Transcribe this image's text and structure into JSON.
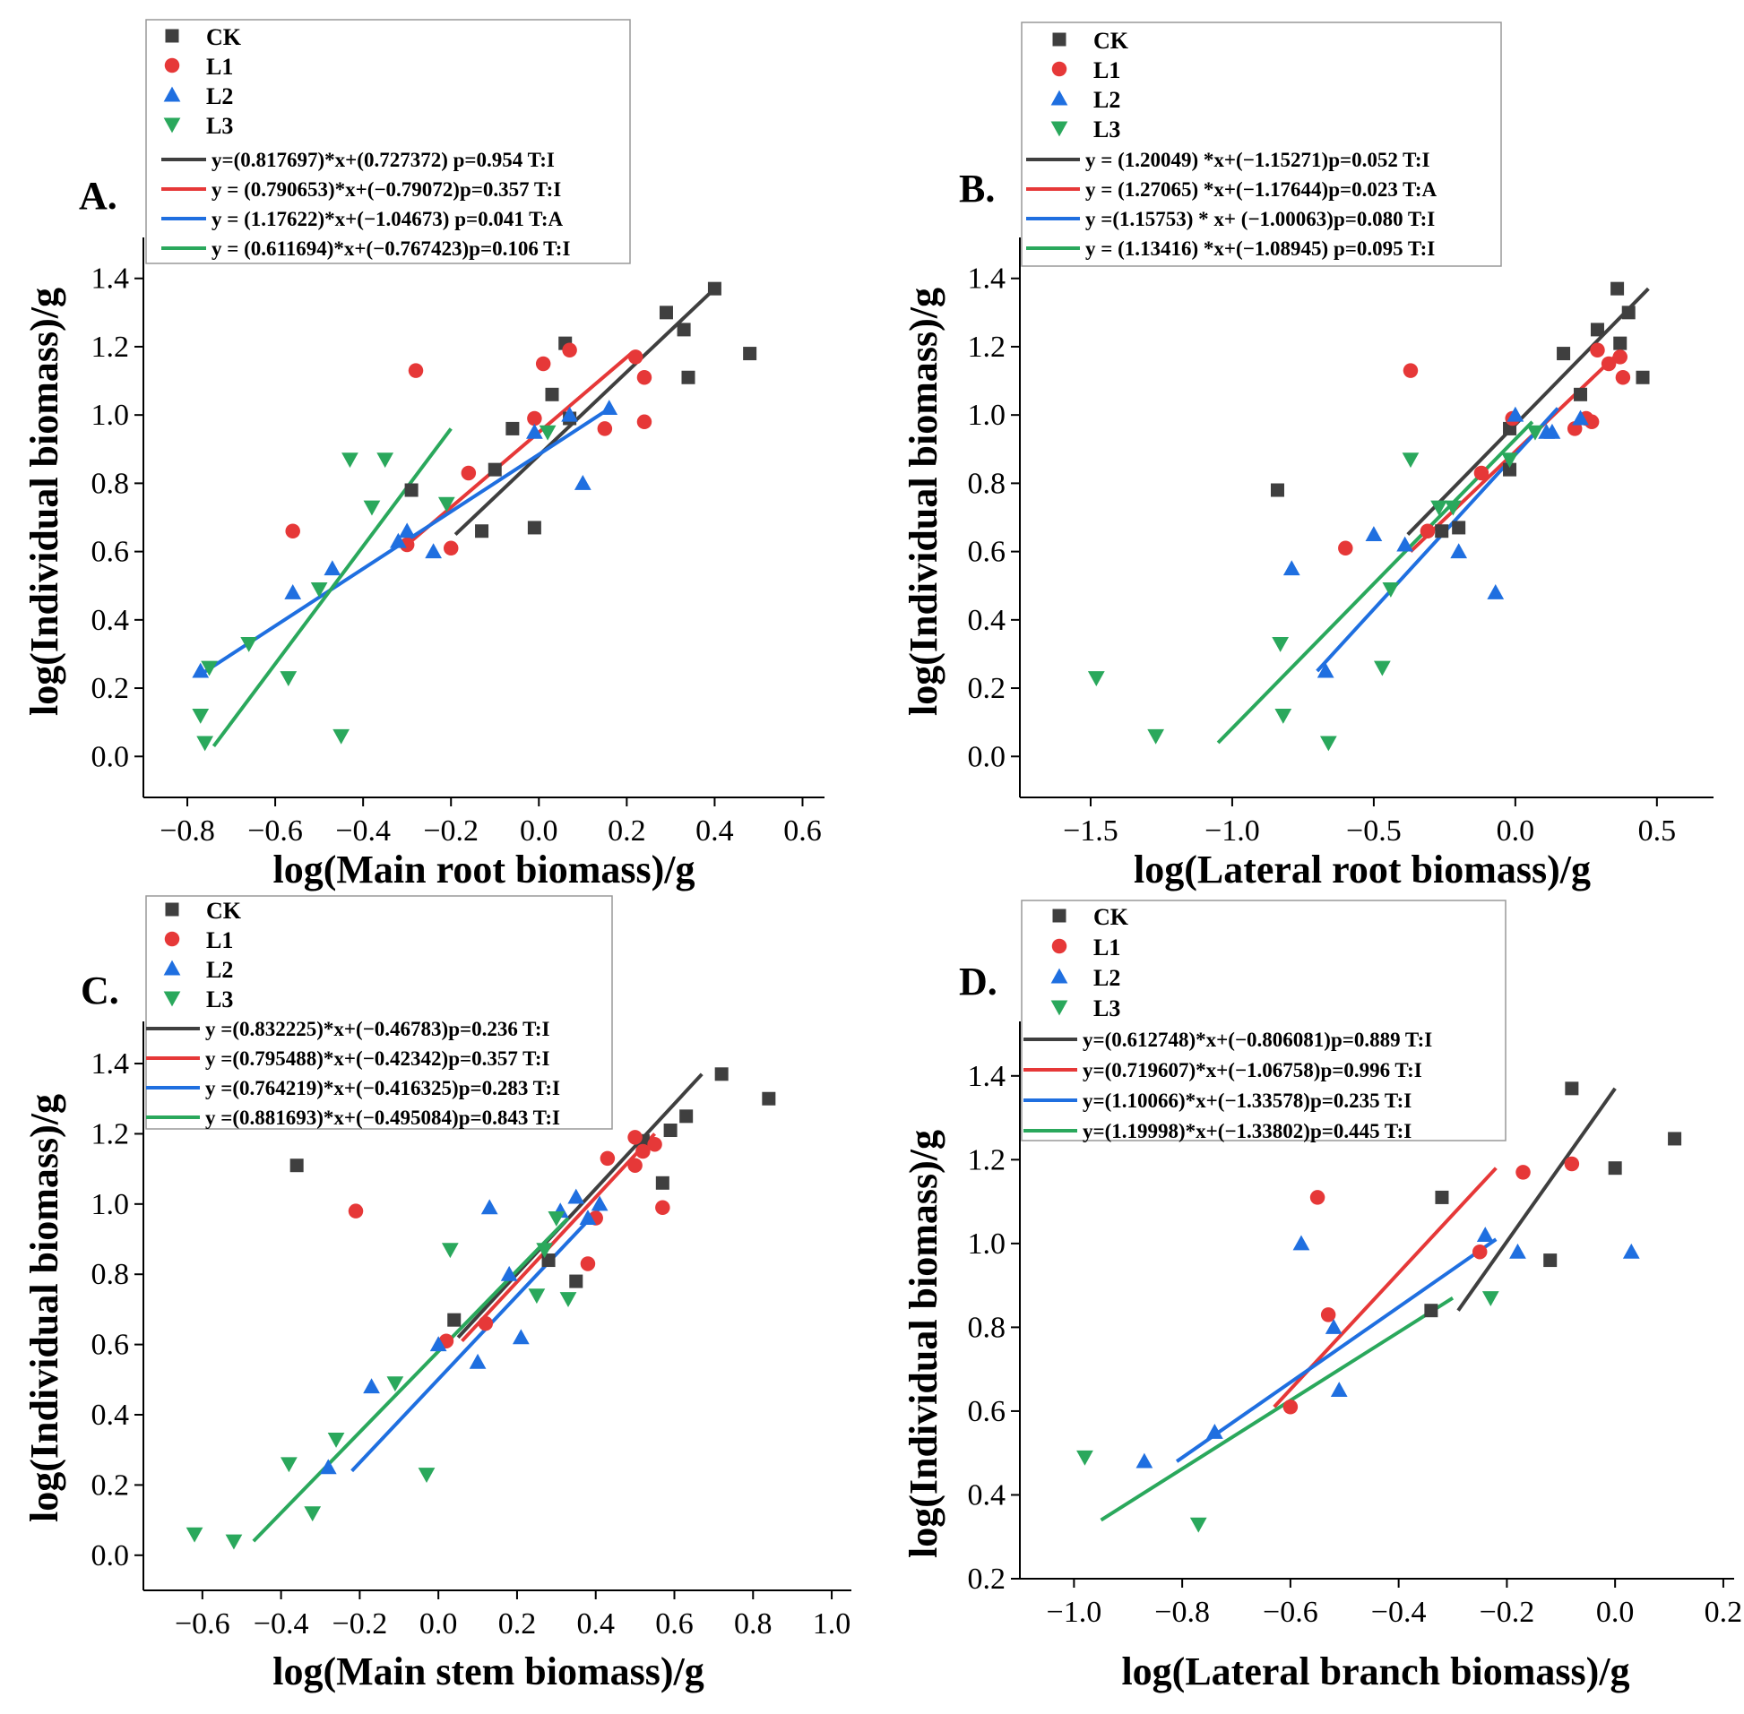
{
  "colors": {
    "CK": "#3f3f3f",
    "L1": "#e63838",
    "L2": "#1f6fe0",
    "L3": "#2aa85c",
    "axis": "#000000"
  },
  "markers": {
    "CK": "square",
    "L1": "circle",
    "L2": "triangle-up",
    "L3": "triangle-down"
  },
  "chart_data": [
    {
      "type": "scatter",
      "panel_label": "A.",
      "xlabel": "log(Main root biomass)/g",
      "ylabel": "log(Individual biomass)/g",
      "xlim": [
        -0.9,
        0.65
      ],
      "ylim": [
        -0.12,
        1.52
      ],
      "xticks": [
        -0.8,
        -0.6,
        -0.4,
        -0.2,
        0.0,
        0.2,
        0.4,
        0.6
      ],
      "xtick_labels": [
        "−0.8",
        "−0.6",
        "−0.4",
        "−0.2",
        "0.0",
        "0.2",
        "0.4",
        "0.6"
      ],
      "yticks": [
        0.0,
        0.2,
        0.4,
        0.6,
        0.8,
        1.0,
        1.2,
        1.4
      ],
      "ytick_labels": [
        "0.0",
        "0.2",
        "0.4",
        "0.6",
        "0.8",
        "1.0",
        "1.2",
        "1.4"
      ],
      "legend": [
        "CK",
        "L1",
        "L2",
        "L3"
      ],
      "series": [
        {
          "name": "CK",
          "x": [
            -0.29,
            -0.13,
            -0.1,
            -0.06,
            -0.01,
            0.03,
            0.06,
            0.07,
            0.29,
            0.33,
            0.34,
            0.4,
            0.48
          ],
          "y": [
            0.78,
            0.66,
            0.84,
            0.96,
            0.67,
            1.06,
            1.21,
            0.99,
            1.3,
            1.25,
            1.11,
            1.37,
            1.18
          ]
        },
        {
          "name": "L1",
          "x": [
            -0.56,
            -0.3,
            -0.28,
            -0.2,
            -0.16,
            -0.01,
            0.01,
            0.07,
            0.15,
            0.22,
            0.24,
            0.24
          ],
          "y": [
            0.66,
            0.62,
            1.13,
            0.61,
            0.83,
            0.99,
            1.15,
            1.19,
            0.96,
            1.17,
            1.11,
            0.98
          ]
        },
        {
          "name": "L2",
          "x": [
            -0.77,
            -0.56,
            -0.47,
            -0.32,
            -0.3,
            -0.24,
            -0.01,
            0.07,
            0.1,
            0.16
          ],
          "y": [
            0.25,
            0.48,
            0.55,
            0.63,
            0.66,
            0.6,
            0.95,
            1.0,
            0.8,
            1.02
          ]
        },
        {
          "name": "L3",
          "x": [
            -0.77,
            -0.76,
            -0.75,
            -0.66,
            -0.57,
            -0.5,
            -0.45,
            -0.43,
            -0.38,
            -0.35,
            -0.21,
            0.02
          ],
          "y": [
            0.12,
            0.04,
            0.26,
            0.33,
            0.23,
            0.49,
            0.06,
            0.87,
            0.73,
            0.87,
            0.74,
            0.95
          ]
        }
      ],
      "fits": [
        {
          "name": "CK",
          "label": "y=(0.817697)*x+(0.727372)  p=0.954 T:I",
          "x0": -0.19,
          "x1": 0.4,
          "y0": 0.65,
          "y1": 1.37
        },
        {
          "name": "L1",
          "label": "y = (0.790653)*x+(−0.79072)p=0.357 T:I",
          "x0": -0.3,
          "x1": 0.21,
          "y0": 0.62,
          "y1": 1.18
        },
        {
          "name": "L2",
          "label": "y = (1.17622)*x+(−1.04673) p=0.041 T:A",
          "x0": -0.77,
          "x1": 0.15,
          "y0": 0.24,
          "y1": 1.01
        },
        {
          "name": "L3",
          "label": "y = (0.611694)*x+(−0.767423)p=0.106 T:I",
          "x0": -0.74,
          "x1": -0.2,
          "y0": 0.03,
          "y1": 0.96
        }
      ]
    },
    {
      "type": "scatter",
      "panel_label": "B.",
      "xlabel": "log(Lateral root biomass)/g",
      "ylabel": "log(Individual biomass)/g",
      "xlim": [
        -1.75,
        0.7
      ],
      "ylim": [
        -0.12,
        1.52
      ],
      "xticks": [
        -1.5,
        -1.0,
        -0.5,
        0.0,
        0.5
      ],
      "xtick_labels": [
        "−1.5",
        "−1.0",
        "−0.5",
        "0.0",
        "0.5"
      ],
      "yticks": [
        0.0,
        0.2,
        0.4,
        0.6,
        0.8,
        1.0,
        1.2,
        1.4
      ],
      "ytick_labels": [
        "0.0",
        "0.2",
        "0.4",
        "0.6",
        "0.8",
        "1.0",
        "1.2",
        "1.4"
      ],
      "legend": [
        "CK",
        "L1",
        "L2",
        "L3"
      ],
      "series": [
        {
          "name": "CK",
          "x": [
            -0.84,
            -0.26,
            -0.2,
            -0.02,
            -0.02,
            0.17,
            0.23,
            0.29,
            0.36,
            0.37,
            0.4,
            0.45
          ],
          "y": [
            0.78,
            0.66,
            0.67,
            0.84,
            0.96,
            1.18,
            1.06,
            1.25,
            1.37,
            1.21,
            1.3,
            1.11
          ]
        },
        {
          "name": "L1",
          "x": [
            -0.6,
            -0.37,
            -0.31,
            -0.12,
            -0.01,
            0.21,
            0.25,
            0.27,
            0.29,
            0.33,
            0.37,
            0.38
          ],
          "y": [
            0.61,
            1.13,
            0.66,
            0.83,
            0.99,
            0.96,
            0.99,
            0.98,
            1.19,
            1.15,
            1.17,
            1.11
          ]
        },
        {
          "name": "L2",
          "x": [
            -0.79,
            -0.67,
            -0.5,
            -0.39,
            -0.2,
            -0.07,
            0.0,
            0.11,
            0.13,
            0.23
          ],
          "y": [
            0.55,
            0.25,
            0.65,
            0.62,
            0.6,
            0.48,
            1.0,
            0.95,
            0.95,
            0.99
          ]
        },
        {
          "name": "L3",
          "x": [
            -1.48,
            -1.27,
            -0.83,
            -0.82,
            -0.66,
            -0.47,
            -0.44,
            -0.37,
            -0.22,
            -0.27,
            -0.02,
            0.07
          ],
          "y": [
            0.23,
            0.06,
            0.33,
            0.12,
            0.04,
            0.26,
            0.49,
            0.87,
            0.73,
            0.73,
            0.87,
            0.95
          ]
        }
      ],
      "fits": [
        {
          "name": "CK",
          "label": "y = (1.20049) *x+(−1.15271)p=0.052 T:I",
          "x0": -0.38,
          "x1": 0.47,
          "y0": 0.65,
          "y1": 1.37
        },
        {
          "name": "L1",
          "label": "y = (1.27065) *x+(−1.17644)p=0.023 T:A",
          "x0": -0.37,
          "x1": 0.35,
          "y0": 0.6,
          "y1": 1.17
        },
        {
          "name": "L2",
          "label": "y =(1.15753) * x+ (−1.00063)p=0.080 T:I",
          "x0": -0.7,
          "x1": 0.15,
          "y0": 0.25,
          "y1": 1.02
        },
        {
          "name": "L3",
          "label": "y = (1.13416) *x+(−1.08945)  p=0.095 T:I",
          "x0": -1.05,
          "x1": 0.06,
          "y0": 0.04,
          "y1": 0.98
        }
      ]
    },
    {
      "type": "scatter",
      "panel_label": "C.",
      "xlabel": "log(Main stem biomass)/g",
      "ylabel": "log(Individual biomass)/g",
      "xlim": [
        -0.75,
        1.05
      ],
      "ylim": [
        -0.1,
        1.52
      ],
      "xticks": [
        -0.6,
        -0.4,
        -0.2,
        0.0,
        0.2,
        0.4,
        0.6,
        0.8,
        1.0
      ],
      "xtick_labels": [
        "−0.6",
        "−0.4",
        "−0.2",
        "0.0",
        "0.2",
        "0.4",
        "0.6",
        "0.8",
        "1.0"
      ],
      "yticks": [
        0.0,
        0.2,
        0.4,
        0.6,
        0.8,
        1.0,
        1.2,
        1.4
      ],
      "ytick_labels": [
        "0.0",
        "0.2",
        "0.4",
        "0.6",
        "0.8",
        "1.0",
        "1.2",
        "1.4"
      ],
      "legend": [
        "CK",
        "L1",
        "L2",
        "L3"
      ],
      "series": [
        {
          "name": "CK",
          "x": [
            -0.36,
            0.04,
            0.28,
            0.35,
            0.52,
            0.57,
            0.59,
            0.63,
            0.72,
            0.84
          ],
          "y": [
            1.11,
            0.67,
            0.84,
            0.78,
            1.18,
            1.06,
            1.21,
            1.25,
            1.37,
            1.3
          ]
        },
        {
          "name": "L1",
          "x": [
            -0.21,
            0.02,
            0.12,
            0.38,
            0.4,
            0.43,
            0.5,
            0.5,
            0.52,
            0.55,
            0.57
          ],
          "y": [
            0.98,
            0.61,
            0.66,
            0.83,
            0.96,
            1.13,
            1.11,
            1.19,
            1.15,
            1.17,
            0.99
          ]
        },
        {
          "name": "L2",
          "x": [
            -0.28,
            -0.17,
            0.0,
            0.1,
            0.13,
            0.18,
            0.21,
            0.31,
            0.35,
            0.38,
            0.41
          ],
          "y": [
            0.25,
            0.48,
            0.6,
            0.55,
            0.99,
            0.8,
            0.62,
            0.98,
            1.02,
            0.96,
            1.0
          ]
        },
        {
          "name": "L3",
          "x": [
            -0.62,
            -0.52,
            -0.38,
            -0.32,
            -0.26,
            -0.11,
            -0.03,
            0.03,
            0.25,
            0.27,
            0.3,
            0.33
          ],
          "y": [
            0.06,
            0.04,
            0.26,
            0.12,
            0.33,
            0.49,
            0.23,
            0.87,
            0.74,
            0.87,
            0.96,
            0.73
          ]
        }
      ],
      "fits": [
        {
          "name": "CK",
          "label": "y =(0.832225)*x+(−0.46783)p=0.236 T:I",
          "x0": 0.05,
          "x1": 0.67,
          "y0": 0.62,
          "y1": 1.37
        },
        {
          "name": "L1",
          "label": "y =(0.795488)*x+(−0.42342)p=0.357 T:I",
          "x0": 0.06,
          "x1": 0.55,
          "y0": 0.61,
          "y1": 1.2
        },
        {
          "name": "L2",
          "label": "y =(0.764219)*x+(−0.416325)p=0.283 T:I",
          "x0": -0.22,
          "x1": 0.42,
          "y0": 0.24,
          "y1": 1.0
        },
        {
          "name": "L3",
          "label": "y =(0.881693)*x+(−0.495084)p=0.843 T:I",
          "x0": -0.47,
          "x1": 0.33,
          "y0": 0.04,
          "y1": 0.96
        }
      ]
    },
    {
      "type": "scatter",
      "panel_label": "D.",
      "xlabel": "log(Lateral branch biomass)/g",
      "ylabel": "log(Individual biomass)/g",
      "xlim": [
        -1.1,
        0.22
      ],
      "ylim": [
        0.2,
        1.53
      ],
      "xticks": [
        -1.0,
        -0.8,
        -0.6,
        -0.4,
        -0.2,
        0.0,
        0.2
      ],
      "xtick_labels": [
        "−1.0",
        "−0.8",
        "−0.6",
        "−0.4",
        "−0.2",
        "0.0",
        "0.2"
      ],
      "yticks": [
        0.2,
        0.4,
        0.6,
        0.8,
        1.0,
        1.2,
        1.4
      ],
      "ytick_labels": [
        "0.2",
        "0.4",
        "0.6",
        "0.8",
        "1.0",
        "1.2",
        "1.4"
      ],
      "legend": [
        "CK",
        "L1",
        "L2",
        "L3"
      ],
      "series": [
        {
          "name": "CK",
          "x": [
            -0.34,
            -0.32,
            -0.12,
            -0.08,
            0.0,
            0.11
          ],
          "y": [
            0.84,
            1.11,
            0.96,
            1.37,
            1.18,
            1.25
          ]
        },
        {
          "name": "L1",
          "x": [
            -0.6,
            -0.55,
            -0.53,
            -0.25,
            -0.17,
            -0.08
          ],
          "y": [
            0.61,
            1.11,
            0.83,
            0.98,
            1.17,
            1.19
          ]
        },
        {
          "name": "L2",
          "x": [
            -0.87,
            -0.74,
            -0.58,
            -0.52,
            -0.51,
            -0.24,
            -0.18,
            0.03
          ],
          "y": [
            0.48,
            0.55,
            1.0,
            0.8,
            0.65,
            1.02,
            0.98,
            0.98
          ]
        },
        {
          "name": "L3",
          "x": [
            -0.98,
            -0.77,
            -0.23
          ],
          "y": [
            0.49,
            0.33,
            0.87
          ]
        }
      ],
      "fits": [
        {
          "name": "CK",
          "label": "y=(0.612748)*x+(−0.806081)p=0.889 T:I",
          "x0": -0.29,
          "x1": 0.0,
          "y0": 0.84,
          "y1": 1.37
        },
        {
          "name": "L1",
          "label": "y=(0.719607)*x+(−1.06758)p=0.996 T:I",
          "x0": -0.63,
          "x1": -0.22,
          "y0": 0.61,
          "y1": 1.18
        },
        {
          "name": "L2",
          "label": "y=(1.10066)*x+(−1.33578)p=0.235 T:I",
          "x0": -0.81,
          "x1": -0.22,
          "y0": 0.48,
          "y1": 1.01
        },
        {
          "name": "L3",
          "label": "y=(1.19998)*x+(−1.33802)p=0.445 T:I",
          "x0": -0.95,
          "x1": -0.3,
          "y0": 0.34,
          "y1": 0.87
        }
      ]
    }
  ]
}
